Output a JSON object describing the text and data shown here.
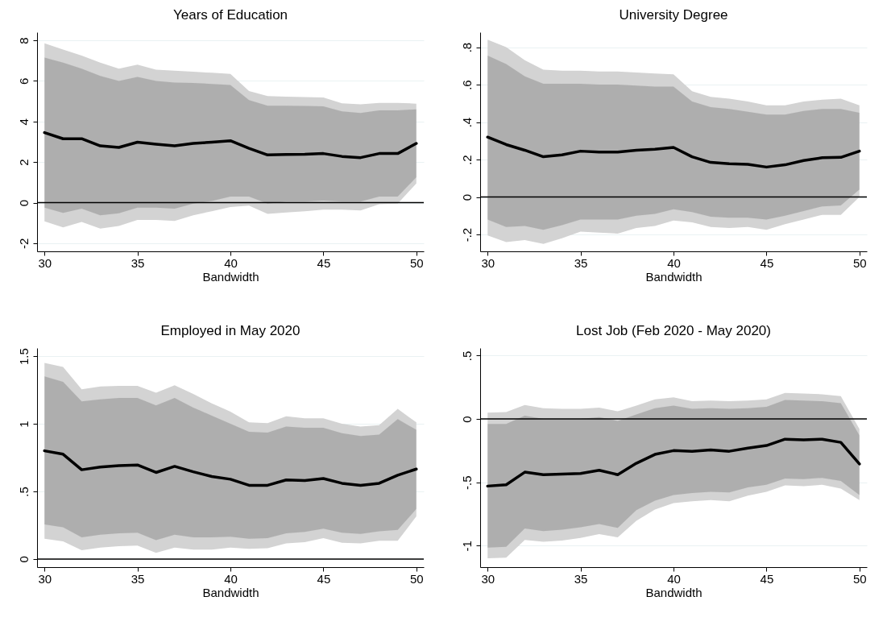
{
  "chart_data": [
    {
      "type": "line",
      "title": "Years of Education",
      "xlabel": "Bandwidth",
      "x": [
        30,
        31,
        32,
        33,
        34,
        35,
        36,
        37,
        38,
        39,
        40,
        41,
        42,
        43,
        44,
        45,
        46,
        47,
        48,
        49,
        50
      ],
      "xlim": [
        29.6,
        50.4
      ],
      "xticks": [
        30,
        35,
        40,
        45,
        50
      ],
      "ylim": [
        -2.4,
        8.4
      ],
      "yticks": [
        -2,
        0,
        2,
        4,
        6,
        8
      ],
      "grid": "y",
      "ref_lines": [
        {
          "axis": "y",
          "value": 0,
          "color": "#000000"
        }
      ],
      "series": [
        {
          "color": "#d3d3d3",
          "values": [
            null,
            null,
            null,
            null,
            null,
            null,
            null,
            null,
            null,
            null,
            null,
            null,
            null,
            null,
            null,
            null,
            null,
            null,
            null,
            null,
            null
          ],
          "lower": [
            -0.92,
            -1.22,
            -0.95,
            -1.28,
            -1.15,
            -0.85,
            -0.85,
            -0.9,
            -0.62,
            -0.42,
            -0.22,
            -0.15,
            -0.55,
            -0.48,
            -0.42,
            -0.35,
            -0.35,
            -0.38,
            -0.08,
            -0.05,
            0.95
          ],
          "upper": [
            7.85,
            7.55,
            7.25,
            6.9,
            6.6,
            6.8,
            6.55,
            6.5,
            6.45,
            6.4,
            6.35,
            5.5,
            5.25,
            5.22,
            5.2,
            5.18,
            4.9,
            4.85,
            4.92,
            4.92,
            4.88
          ]
        },
        {
          "color": "#000000",
          "values": [
            3.45,
            3.15,
            3.15,
            2.8,
            2.72,
            2.98,
            2.88,
            2.8,
            2.92,
            2.98,
            3.05,
            2.68,
            2.35,
            2.37,
            2.38,
            2.42,
            2.28,
            2.22,
            2.42,
            2.42,
            2.92
          ],
          "lower": [
            -0.25,
            -0.5,
            -0.3,
            -0.62,
            -0.52,
            -0.25,
            -0.25,
            -0.3,
            -0.05,
            0.08,
            0.3,
            0.3,
            -0.05,
            0.05,
            0.05,
            0.1,
            0.05,
            0.05,
            0.3,
            0.3,
            1.25
          ],
          "upper": [
            7.15,
            6.9,
            6.6,
            6.25,
            6.0,
            6.2,
            6.0,
            5.92,
            5.9,
            5.85,
            5.8,
            5.05,
            4.78,
            4.78,
            4.77,
            4.75,
            4.5,
            4.42,
            4.55,
            4.55,
            4.6
          ]
        }
      ]
    },
    {
      "type": "line",
      "title": "University Degree",
      "xlabel": "Bandwidth",
      "x": [
        30,
        31,
        32,
        33,
        34,
        35,
        36,
        37,
        38,
        39,
        40,
        41,
        42,
        43,
        44,
        45,
        46,
        47,
        48,
        49,
        50
      ],
      "xlim": [
        29.6,
        50.4
      ],
      "xticks": [
        30,
        35,
        40,
        45,
        50
      ],
      "ylim": [
        -0.29,
        0.88
      ],
      "yticks": [
        {
          "value": -0.2,
          "label": "-.2"
        },
        0,
        {
          "value": 0.2,
          "label": ".2"
        },
        {
          "value": 0.4,
          "label": ".4"
        },
        {
          "value": 0.6,
          "label": ".6"
        },
        {
          "value": 0.8,
          "label": ".8"
        }
      ],
      "grid": "y",
      "ref_lines": [
        {
          "axis": "y",
          "value": 0,
          "color": "#000000"
        }
      ],
      "series": [
        {
          "color": "#d3d3d3",
          "values": [
            null,
            null,
            null,
            null,
            null,
            null,
            null,
            null,
            null,
            null,
            null,
            null,
            null,
            null,
            null,
            null,
            null,
            null,
            null,
            null,
            null
          ],
          "lower": [
            -0.205,
            -0.24,
            -0.23,
            -0.25,
            -0.22,
            -0.185,
            -0.19,
            -0.195,
            -0.165,
            -0.155,
            -0.125,
            -0.135,
            -0.16,
            -0.165,
            -0.16,
            -0.175,
            -0.145,
            -0.12,
            -0.095,
            -0.095,
            0.0
          ],
          "upper": [
            0.84,
            0.8,
            0.73,
            0.68,
            0.675,
            0.675,
            0.67,
            0.67,
            0.665,
            0.66,
            0.655,
            0.565,
            0.535,
            0.525,
            0.51,
            0.49,
            0.49,
            0.51,
            0.52,
            0.525,
            0.49
          ]
        },
        {
          "color": "#000000",
          "values": [
            0.32,
            0.28,
            0.25,
            0.215,
            0.225,
            0.245,
            0.24,
            0.24,
            0.25,
            0.255,
            0.265,
            0.215,
            0.185,
            0.178,
            0.175,
            0.16,
            0.172,
            0.195,
            0.21,
            0.212,
            0.245
          ],
          "lower": [
            -0.12,
            -0.16,
            -0.155,
            -0.175,
            -0.15,
            -0.12,
            -0.12,
            -0.12,
            -0.1,
            -0.09,
            -0.065,
            -0.08,
            -0.105,
            -0.11,
            -0.11,
            -0.12,
            -0.1,
            -0.075,
            -0.05,
            -0.045,
            0.04
          ],
          "upper": [
            0.755,
            0.71,
            0.645,
            0.605,
            0.605,
            0.605,
            0.6,
            0.6,
            0.595,
            0.59,
            0.59,
            0.51,
            0.48,
            0.47,
            0.455,
            0.44,
            0.44,
            0.46,
            0.47,
            0.47,
            0.45
          ]
        }
      ]
    },
    {
      "type": "line",
      "title": "Employed in May 2020",
      "xlabel": "Bandwidth",
      "x": [
        30,
        31,
        32,
        33,
        34,
        35,
        36,
        37,
        38,
        39,
        40,
        41,
        42,
        43,
        44,
        45,
        46,
        47,
        48,
        49,
        50
      ],
      "xlim": [
        29.6,
        50.4
      ],
      "xticks": [
        30,
        35,
        40,
        45,
        50
      ],
      "ylim": [
        -0.06,
        1.56
      ],
      "yticks": [
        0,
        {
          "value": 0.5,
          "label": ".5"
        },
        1,
        1.5
      ],
      "grid": "y",
      "ref_lines": [
        {
          "axis": "y",
          "value": 0,
          "color": "#000000"
        }
      ],
      "series": [
        {
          "color": "#d3d3d3",
          "values": [
            null,
            null,
            null,
            null,
            null,
            null,
            null,
            null,
            null,
            null,
            null,
            null,
            null,
            null,
            null,
            null,
            null,
            null,
            null,
            null,
            null
          ],
          "lower": [
            0.15,
            0.13,
            0.065,
            0.085,
            0.095,
            0.1,
            0.045,
            0.085,
            0.07,
            0.07,
            0.085,
            0.075,
            0.08,
            0.115,
            0.125,
            0.155,
            0.12,
            0.115,
            0.135,
            0.135,
            0.315
          ],
          "upper": [
            1.45,
            1.42,
            1.255,
            1.275,
            1.28,
            1.28,
            1.23,
            1.285,
            1.22,
            1.15,
            1.09,
            1.01,
            1.005,
            1.055,
            1.04,
            1.04,
            1.0,
            0.98,
            0.99,
            1.11,
            1.01
          ]
        },
        {
          "color": "#000000",
          "values": [
            0.8,
            0.775,
            0.66,
            0.68,
            0.69,
            0.695,
            0.64,
            0.685,
            0.645,
            0.61,
            0.59,
            0.545,
            0.545,
            0.585,
            0.58,
            0.595,
            0.56,
            0.545,
            0.56,
            0.62,
            0.665
          ],
          "lower": [
            0.255,
            0.235,
            0.16,
            0.18,
            0.19,
            0.195,
            0.14,
            0.18,
            0.16,
            0.16,
            0.165,
            0.15,
            0.155,
            0.19,
            0.2,
            0.225,
            0.195,
            0.185,
            0.205,
            0.215,
            0.37
          ],
          "upper": [
            1.35,
            1.31,
            1.165,
            1.18,
            1.19,
            1.19,
            1.135,
            1.19,
            1.12,
            1.06,
            1.0,
            0.94,
            0.935,
            0.98,
            0.97,
            0.97,
            0.93,
            0.91,
            0.92,
            1.035,
            0.955
          ]
        }
      ]
    },
    {
      "type": "line",
      "title": "Lost Job (Feb 2020 - May 2020)",
      "xlabel": "Bandwidth",
      "x": [
        30,
        31,
        32,
        33,
        34,
        35,
        36,
        37,
        38,
        39,
        40,
        41,
        42,
        43,
        44,
        45,
        46,
        47,
        48,
        49,
        50
      ],
      "xlim": [
        29.6,
        50.4
      ],
      "xticks": [
        30,
        35,
        40,
        45,
        50
      ],
      "ylim": [
        -1.17,
        0.56
      ],
      "yticks": [
        -1,
        {
          "value": -0.5,
          "label": "-.5"
        },
        0,
        {
          "value": 0.5,
          "label": ".5"
        }
      ],
      "grid": "y",
      "ref_lines": [
        {
          "axis": "y",
          "value": 0,
          "color": "#000000"
        }
      ],
      "series": [
        {
          "color": "#d3d3d3",
          "values": [
            null,
            null,
            null,
            null,
            null,
            null,
            null,
            null,
            null,
            null,
            null,
            null,
            null,
            null,
            null,
            null,
            null,
            null,
            null,
            null,
            null
          ],
          "lower": [
            -1.1,
            -1.095,
            -0.955,
            -0.97,
            -0.96,
            -0.94,
            -0.91,
            -0.935,
            -0.805,
            -0.715,
            -0.665,
            -0.65,
            -0.64,
            -0.65,
            -0.605,
            -0.575,
            -0.525,
            -0.53,
            -0.52,
            -0.55,
            -0.64
          ],
          "upper": [
            0.05,
            0.055,
            0.11,
            0.085,
            0.08,
            0.08,
            0.09,
            0.06,
            0.105,
            0.155,
            0.17,
            0.14,
            0.145,
            0.14,
            0.145,
            0.155,
            0.205,
            0.2,
            0.195,
            0.18,
            -0.08
          ]
        },
        {
          "color": "#000000",
          "values": [
            -0.53,
            -0.52,
            -0.42,
            -0.44,
            -0.435,
            -0.43,
            -0.405,
            -0.44,
            -0.35,
            -0.28,
            -0.25,
            -0.255,
            -0.245,
            -0.255,
            -0.23,
            -0.21,
            -0.16,
            -0.165,
            -0.16,
            -0.185,
            -0.355
          ],
          "lower": [
            -1.015,
            -1.01,
            -0.865,
            -0.885,
            -0.875,
            -0.855,
            -0.83,
            -0.86,
            -0.72,
            -0.645,
            -0.6,
            -0.585,
            -0.575,
            -0.58,
            -0.54,
            -0.52,
            -0.47,
            -0.475,
            -0.465,
            -0.49,
            -0.6
          ],
          "upper": [
            -0.04,
            -0.04,
            0.025,
            0.0,
            0.0,
            0.0,
            0.015,
            -0.015,
            0.035,
            0.085,
            0.105,
            0.08,
            0.085,
            0.08,
            0.085,
            0.095,
            0.15,
            0.145,
            0.14,
            0.125,
            -0.13
          ]
        }
      ]
    }
  ]
}
